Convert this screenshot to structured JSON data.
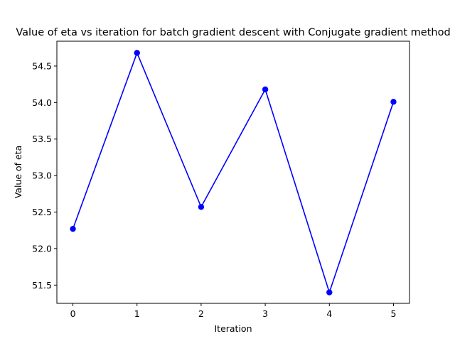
{
  "chart_data": {
    "type": "line",
    "title": "Value of eta vs iteration for batch gradient descent with Conjugate gradient method",
    "xlabel": "Iteration",
    "ylabel": "Value of eta",
    "x": [
      0,
      1,
      2,
      3,
      4,
      5
    ],
    "y": [
      52.27,
      54.68,
      52.57,
      54.18,
      51.4,
      54.01
    ],
    "xlim": [
      -0.25,
      5.25
    ],
    "ylim": [
      51.25,
      54.84
    ],
    "xticks": [
      "0",
      "1",
      "2",
      "3",
      "4",
      "5"
    ],
    "yticks": [
      "51.5",
      "52.0",
      "52.5",
      "53.0",
      "53.5",
      "54.0",
      "54.5"
    ],
    "grid": false,
    "legend": "none",
    "line_color": "#0000ff",
    "marker": "circle"
  }
}
